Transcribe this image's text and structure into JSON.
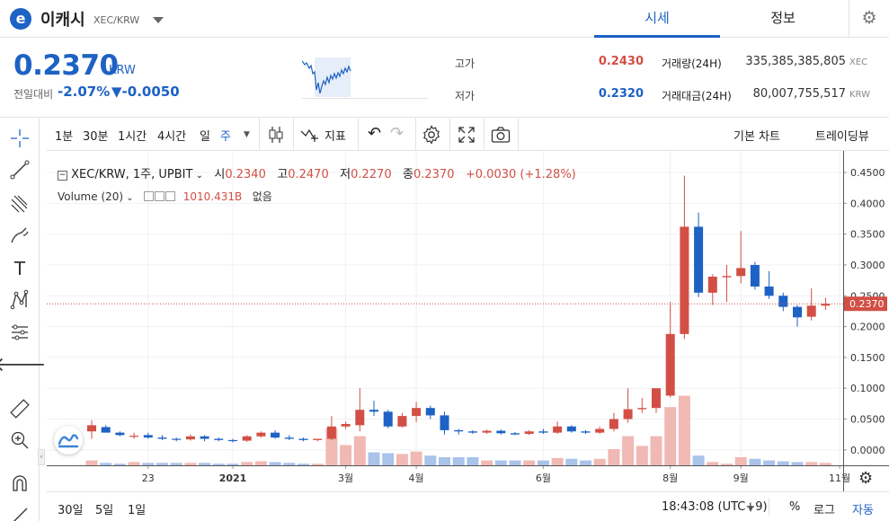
{
  "header": {
    "coin_name": "이캐시",
    "pair": "XEC/KRW",
    "tabs": [
      {
        "label": "시세",
        "active": true
      },
      {
        "label": "정보",
        "active": false
      }
    ]
  },
  "price": {
    "current": "0.2370",
    "unit": "KRW",
    "change_label": "전일대비",
    "change_pct": "-2.07%",
    "change_amt": "▼-0.0050"
  },
  "stats": {
    "high_label": "고가",
    "high": "0.2430",
    "low_label": "저가",
    "low": "0.2320",
    "volume_label": "거래량(24H)",
    "volume": "335,385,385,805",
    "volume_unit": "XEC",
    "amount_label": "거래대금(24H)",
    "amount": "80,007,755,517",
    "amount_unit": "KRW"
  },
  "toolbar": {
    "intervals": [
      {
        "label": "1분",
        "active": false
      },
      {
        "label": "30분",
        "active": false
      },
      {
        "label": "1시간",
        "active": false
      },
      {
        "label": "4시간",
        "active": false
      },
      {
        "label": "일",
        "active": false
      },
      {
        "label": "주",
        "active": true
      }
    ],
    "indicator_label": "지표",
    "basic_chart": "기본 차트",
    "tradingview": "트레이딩뷰"
  },
  "legend": {
    "symbol": "XEC/KRW, 1주, UPBIT",
    "o_label": "시",
    "o": "0.2340",
    "h_label": "고",
    "h": "0.2470",
    "l_label": "저",
    "l": "0.2270",
    "c_label": "종",
    "c": "0.2370",
    "chg": "+0.0030 (+1.28%)",
    "volume_label": "Volume (20)",
    "volume_value": "1010.431B",
    "volume_ma": "없음"
  },
  "bottom": {
    "ranges": [
      "30일",
      "5일",
      "1일"
    ],
    "time": "18:43:08 (UTC+9)",
    "pct": "%",
    "log": "로그",
    "auto": "자동"
  },
  "chart_data": {
    "type": "candlestick",
    "price_axis_ticks": [
      "0.4500",
      "0.4000",
      "0.3500",
      "0.3000",
      "0.2500",
      "0.2000",
      "0.1500",
      "0.1000",
      "0.0500",
      "0.0000"
    ],
    "ylim": [
      -0.025,
      0.485
    ],
    "last_price_label": "0.2370",
    "last_price": 0.237,
    "time_axis": [
      {
        "label": "23",
        "index": 4
      },
      {
        "label": "2021",
        "index": 10
      },
      {
        "label": "3월",
        "index": 18
      },
      {
        "label": "4월",
        "index": 23
      },
      {
        "label": "6월",
        "index": 32
      },
      {
        "label": "8월",
        "index": 41
      },
      {
        "label": "9월",
        "index": 46
      },
      {
        "label": "11월",
        "index": 53
      }
    ],
    "candles": [
      {
        "o": 0.03,
        "h": 0.048,
        "l": 0.018,
        "c": 0.04,
        "v": 0.06
      },
      {
        "o": 0.037,
        "h": 0.04,
        "l": 0.03,
        "c": 0.028,
        "v": 0.03
      },
      {
        "o": 0.028,
        "h": 0.03,
        "l": 0.022,
        "c": 0.024,
        "v": 0.02
      },
      {
        "o": 0.022,
        "h": 0.028,
        "l": 0.018,
        "c": 0.023,
        "v": 0.04
      },
      {
        "o": 0.024,
        "h": 0.028,
        "l": 0.018,
        "c": 0.02,
        "v": 0.03
      },
      {
        "o": 0.02,
        "h": 0.024,
        "l": 0.016,
        "c": 0.018,
        "v": 0.03
      },
      {
        "o": 0.018,
        "h": 0.02,
        "l": 0.014,
        "c": 0.017,
        "v": 0.03
      },
      {
        "o": 0.017,
        "h": 0.025,
        "l": 0.015,
        "c": 0.022,
        "v": 0.03
      },
      {
        "o": 0.022,
        "h": 0.024,
        "l": 0.014,
        "c": 0.018,
        "v": 0.03
      },
      {
        "o": 0.018,
        "h": 0.02,
        "l": 0.014,
        "c": 0.016,
        "v": 0.02
      },
      {
        "o": 0.016,
        "h": 0.018,
        "l": 0.012,
        "c": 0.015,
        "v": 0.02
      },
      {
        "o": 0.015,
        "h": 0.024,
        "l": 0.013,
        "c": 0.022,
        "v": 0.04
      },
      {
        "o": 0.022,
        "h": 0.03,
        "l": 0.02,
        "c": 0.028,
        "v": 0.05
      },
      {
        "o": 0.028,
        "h": 0.032,
        "l": 0.018,
        "c": 0.02,
        "v": 0.04
      },
      {
        "o": 0.02,
        "h": 0.024,
        "l": 0.016,
        "c": 0.018,
        "v": 0.03
      },
      {
        "o": 0.018,
        "h": 0.02,
        "l": 0.014,
        "c": 0.016,
        "v": 0.02
      },
      {
        "o": 0.016,
        "h": 0.018,
        "l": 0.014,
        "c": 0.018,
        "v": 0.02
      },
      {
        "o": 0.018,
        "h": 0.055,
        "l": 0.016,
        "c": 0.038,
        "v": 0.46
      },
      {
        "o": 0.038,
        "h": 0.046,
        "l": 0.034,
        "c": 0.042,
        "v": 0.25
      },
      {
        "o": 0.04,
        "h": 0.1,
        "l": 0.03,
        "c": 0.065,
        "v": 0.36
      },
      {
        "o": 0.065,
        "h": 0.08,
        "l": 0.055,
        "c": 0.062,
        "v": 0.16
      },
      {
        "o": 0.062,
        "h": 0.065,
        "l": 0.035,
        "c": 0.038,
        "v": 0.15
      },
      {
        "o": 0.038,
        "h": 0.06,
        "l": 0.036,
        "c": 0.055,
        "v": 0.14
      },
      {
        "o": 0.055,
        "h": 0.078,
        "l": 0.045,
        "c": 0.068,
        "v": 0.17
      },
      {
        "o": 0.068,
        "h": 0.072,
        "l": 0.05,
        "c": 0.056,
        "v": 0.12
      },
      {
        "o": 0.056,
        "h": 0.062,
        "l": 0.025,
        "c": 0.032,
        "v": 0.1
      },
      {
        "o": 0.032,
        "h": 0.034,
        "l": 0.025,
        "c": 0.03,
        "v": 0.1
      },
      {
        "o": 0.03,
        "h": 0.032,
        "l": 0.026,
        "c": 0.028,
        "v": 0.1
      },
      {
        "o": 0.028,
        "h": 0.033,
        "l": 0.026,
        "c": 0.031,
        "v": 0.06
      },
      {
        "o": 0.031,
        "h": 0.033,
        "l": 0.025,
        "c": 0.027,
        "v": 0.06
      },
      {
        "o": 0.027,
        "h": 0.029,
        "l": 0.024,
        "c": 0.025,
        "v": 0.06
      },
      {
        "o": 0.026,
        "h": 0.032,
        "l": 0.024,
        "c": 0.03,
        "v": 0.06
      },
      {
        "o": 0.03,
        "h": 0.034,
        "l": 0.026,
        "c": 0.028,
        "v": 0.06
      },
      {
        "o": 0.028,
        "h": 0.046,
        "l": 0.026,
        "c": 0.038,
        "v": 0.09
      },
      {
        "o": 0.038,
        "h": 0.04,
        "l": 0.028,
        "c": 0.03,
        "v": 0.08
      },
      {
        "o": 0.03,
        "h": 0.032,
        "l": 0.026,
        "c": 0.028,
        "v": 0.06
      },
      {
        "o": 0.028,
        "h": 0.038,
        "l": 0.026,
        "c": 0.034,
        "v": 0.08
      },
      {
        "o": 0.034,
        "h": 0.06,
        "l": 0.03,
        "c": 0.05,
        "v": 0.2
      },
      {
        "o": 0.05,
        "h": 0.1,
        "l": 0.044,
        "c": 0.066,
        "v": 0.36
      },
      {
        "o": 0.066,
        "h": 0.084,
        "l": 0.06,
        "c": 0.068,
        "v": 0.24
      },
      {
        "o": 0.068,
        "h": 0.095,
        "l": 0.06,
        "c": 0.1,
        "v": 0.36
      },
      {
        "o": 0.088,
        "h": 0.24,
        "l": 0.085,
        "c": 0.188,
        "v": 0.72
      },
      {
        "o": 0.188,
        "h": 0.445,
        "l": 0.18,
        "c": 0.362,
        "v": 0.86
      },
      {
        "o": 0.362,
        "h": 0.385,
        "l": 0.248,
        "c": 0.255,
        "v": 0.12
      },
      {
        "o": 0.255,
        "h": 0.285,
        "l": 0.235,
        "c": 0.281,
        "v": 0.04
      },
      {
        "o": 0.28,
        "h": 0.3,
        "l": 0.24,
        "c": 0.282,
        "v": 0.02
      },
      {
        "o": 0.282,
        "h": 0.355,
        "l": 0.27,
        "c": 0.295,
        "v": 0.1
      },
      {
        "o": 0.3,
        "h": 0.305,
        "l": 0.26,
        "c": 0.265,
        "v": 0.08
      },
      {
        "o": 0.265,
        "h": 0.29,
        "l": 0.245,
        "c": 0.25,
        "v": 0.06
      },
      {
        "o": 0.25,
        "h": 0.255,
        "l": 0.225,
        "c": 0.232,
        "v": 0.05
      },
      {
        "o": 0.232,
        "h": 0.235,
        "l": 0.2,
        "c": 0.215,
        "v": 0.04
      },
      {
        "o": 0.216,
        "h": 0.262,
        "l": 0.21,
        "c": 0.234,
        "v": 0.04
      },
      {
        "o": 0.234,
        "h": 0.247,
        "l": 0.227,
        "c": 0.237,
        "v": 0.03
      }
    ]
  }
}
